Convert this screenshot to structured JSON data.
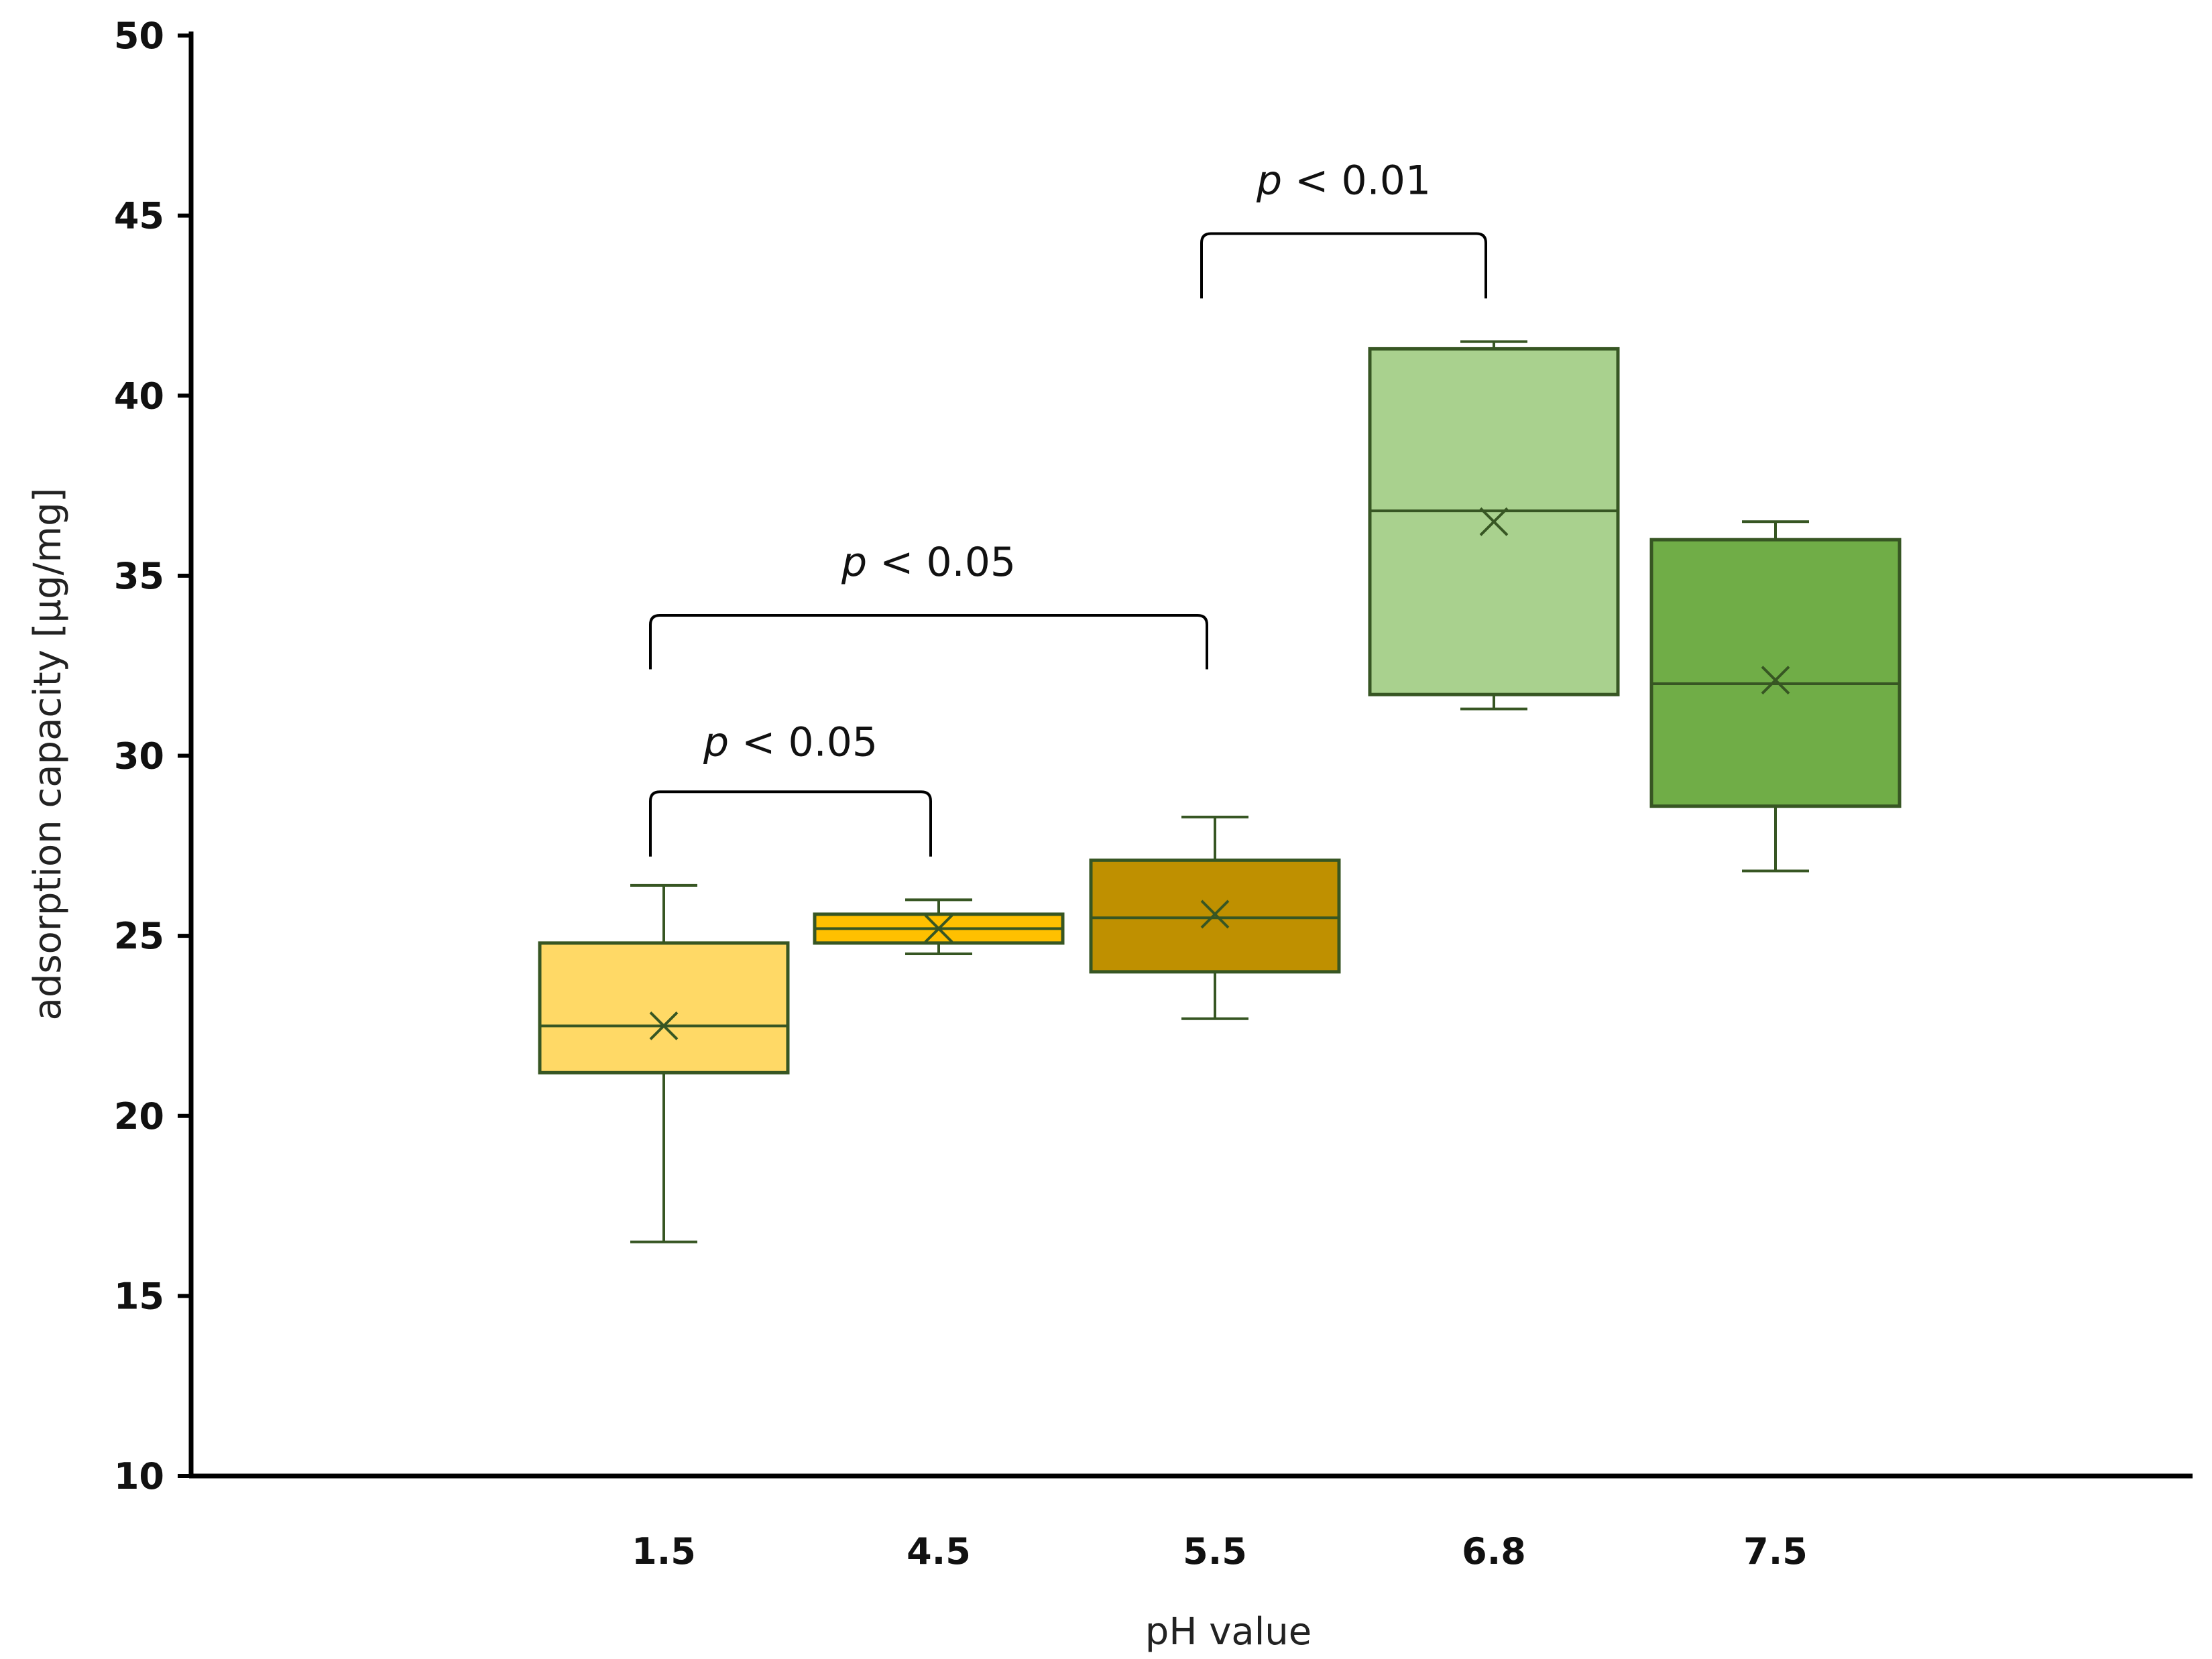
{
  "chart_data": {
    "type": "box",
    "xlabel": "pH value",
    "ylabel": "adsorption capacity [µg/mg]",
    "ylim": [
      10,
      50
    ],
    "yticks": [
      10,
      15,
      20,
      25,
      30,
      35,
      40,
      45,
      50
    ],
    "grid": false,
    "legend": "none",
    "categories": [
      "1.5",
      "4.5",
      "5.5",
      "6.8",
      "7.5"
    ],
    "boxes": [
      {
        "category": "1.5",
        "min": 16.5,
        "q1": 21.2,
        "median": 22.5,
        "q3": 24.8,
        "max": 26.4,
        "mean": 22.5,
        "color": "#FFD966"
      },
      {
        "category": "4.5",
        "min": 24.5,
        "q1": 24.8,
        "median": 25.2,
        "q3": 25.6,
        "max": 26.0,
        "mean": 25.2,
        "color": "#FFC000"
      },
      {
        "category": "5.5",
        "min": 22.7,
        "q1": 24.0,
        "median": 25.5,
        "q3": 27.1,
        "max": 28.3,
        "mean": 25.6,
        "color": "#BF9000"
      },
      {
        "category": "6.8",
        "min": 31.3,
        "q1": 31.7,
        "median": 36.8,
        "q3": 41.3,
        "max": 41.5,
        "mean": 36.5,
        "color": "#A9D18E"
      },
      {
        "category": "7.5",
        "min": 26.8,
        "q1": 28.6,
        "median": 32.0,
        "q3": 36.0,
        "max": 36.5,
        "mean": 32.1,
        "color": "#70AD47"
      }
    ],
    "stroke_color": "#375623",
    "annotations": [
      {
        "from": "1.5",
        "to": "4.5",
        "p_symbol": "p",
        "text": " < 0.05",
        "bracket_top": 29.0,
        "bracket_bottom": 27.2,
        "label_y": 30.0
      },
      {
        "from": "1.5",
        "to": "5.5",
        "p_symbol": "p",
        "text": " < 0.05",
        "bracket_top": 33.9,
        "bracket_bottom": 32.4,
        "label_y": 35.0
      },
      {
        "from": "5.5",
        "to": "6.8",
        "p_symbol": "p",
        "text": " < 0.01",
        "bracket_top": 44.5,
        "bracket_bottom": 42.7,
        "label_y": 45.6
      }
    ]
  }
}
